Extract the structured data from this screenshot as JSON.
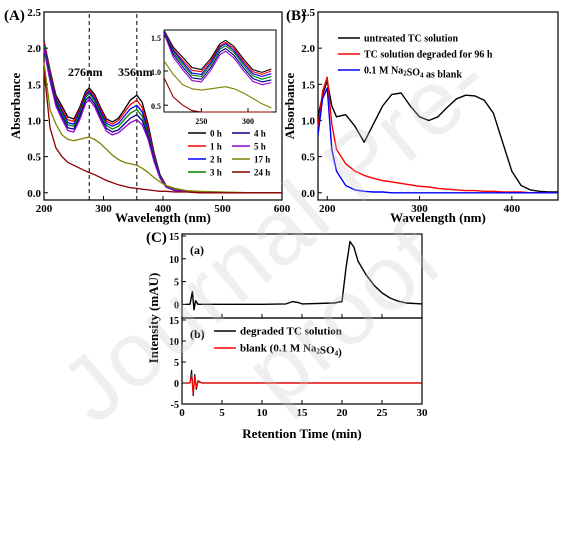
{
  "watermark": "Journal Pre-proof",
  "chart_data": [
    {
      "panel": "(A)",
      "type": "line",
      "xlabel": "Wavelength (nm)",
      "ylabel": "Absorbance",
      "xlim": [
        200,
        600
      ],
      "ylim": [
        -0.1,
        2.5
      ],
      "xticks": [
        "200",
        "300",
        "400",
        "500",
        "600"
      ],
      "yticks": [
        "0.0",
        "0.5",
        "1.0",
        "1.5",
        "2.0",
        "2.5"
      ],
      "annotations": [
        "276nm",
        "356nm"
      ],
      "reference_lines_x": [
        276,
        356
      ],
      "legend_position": "lower-right",
      "x": [
        200,
        210,
        220,
        230,
        240,
        250,
        260,
        270,
        276,
        285,
        295,
        305,
        315,
        325,
        335,
        345,
        356,
        365,
        375,
        385,
        395,
        405,
        420,
        440,
        460,
        500,
        550,
        600
      ],
      "series": [
        {
          "name": "0 h",
          "color": "#000000",
          "values": [
            2.1,
            1.7,
            1.35,
            1.2,
            1.05,
            1.02,
            1.18,
            1.4,
            1.45,
            1.36,
            1.18,
            1.02,
            0.98,
            1.03,
            1.15,
            1.28,
            1.35,
            1.25,
            0.95,
            0.55,
            0.25,
            0.1,
            0.04,
            0.02,
            0.01,
            0.0,
            0.0,
            0.0
          ]
        },
        {
          "name": "1 h",
          "color": "#ff0000",
          "values": [
            2.08,
            1.68,
            1.32,
            1.16,
            1.01,
            0.99,
            1.15,
            1.37,
            1.42,
            1.33,
            1.15,
            0.99,
            0.95,
            1.0,
            1.11,
            1.22,
            1.28,
            1.18,
            0.9,
            0.52,
            0.24,
            0.1,
            0.04,
            0.02,
            0.01,
            0.0,
            0.0,
            0.0
          ]
        },
        {
          "name": "2 h",
          "color": "#0000ff",
          "values": [
            2.05,
            1.65,
            1.3,
            1.13,
            0.97,
            0.95,
            1.12,
            1.35,
            1.4,
            1.3,
            1.12,
            0.96,
            0.92,
            0.96,
            1.06,
            1.16,
            1.21,
            1.12,
            0.86,
            0.5,
            0.23,
            0.09,
            0.04,
            0.02,
            0.01,
            0.0,
            0.0,
            0.0
          ]
        },
        {
          "name": "3 h",
          "color": "#008000",
          "values": [
            2.03,
            1.62,
            1.27,
            1.1,
            0.94,
            0.92,
            1.09,
            1.32,
            1.37,
            1.27,
            1.09,
            0.93,
            0.88,
            0.92,
            1.01,
            1.1,
            1.15,
            1.06,
            0.82,
            0.48,
            0.22,
            0.09,
            0.04,
            0.02,
            0.01,
            0.0,
            0.0,
            0.0
          ]
        },
        {
          "name": "4 h",
          "color": "#000080",
          "values": [
            2.0,
            1.58,
            1.24,
            1.06,
            0.9,
            0.88,
            1.05,
            1.28,
            1.33,
            1.23,
            1.05,
            0.89,
            0.84,
            0.87,
            0.95,
            1.03,
            1.08,
            1.0,
            0.78,
            0.45,
            0.21,
            0.08,
            0.03,
            0.02,
            0.01,
            0.0,
            0.0,
            0.0
          ]
        },
        {
          "name": "5 h",
          "color": "#9400d3",
          "values": [
            1.98,
            1.55,
            1.2,
            1.02,
            0.86,
            0.84,
            1.01,
            1.24,
            1.29,
            1.19,
            1.01,
            0.85,
            0.8,
            0.83,
            0.9,
            0.97,
            1.01,
            0.94,
            0.74,
            0.43,
            0.2,
            0.08,
            0.03,
            0.02,
            0.01,
            0.0,
            0.0,
            0.0
          ]
        },
        {
          "name": "17 h",
          "color": "#808000",
          "values": [
            1.8,
            1.15,
            0.95,
            0.8,
            0.74,
            0.72,
            0.74,
            0.76,
            0.77,
            0.74,
            0.68,
            0.6,
            0.52,
            0.46,
            0.42,
            0.4,
            0.38,
            0.34,
            0.28,
            0.21,
            0.15,
            0.1,
            0.06,
            0.03,
            0.02,
            0.01,
            0.0,
            0.0
          ]
        },
        {
          "name": "24 h",
          "color": "#8b0000",
          "values": [
            1.7,
            0.9,
            0.62,
            0.5,
            0.42,
            0.38,
            0.34,
            0.3,
            0.28,
            0.25,
            0.21,
            0.17,
            0.14,
            0.11,
            0.09,
            0.07,
            0.06,
            0.05,
            0.04,
            0.03,
            0.02,
            0.02,
            0.01,
            0.01,
            0.0,
            0.0,
            0.0,
            0.0
          ]
        }
      ],
      "inset": {
        "xlim": [
          210,
          330
        ],
        "ylim": [
          0.4,
          1.6
        ],
        "xticks": [
          "250",
          "300"
        ],
        "yticks": [
          "0.5",
          "1.0",
          "1.5"
        ]
      }
    },
    {
      "panel": "(B)",
      "type": "line",
      "xlabel": "Wavelength (nm)",
      "ylabel": "Absorbance",
      "xlim": [
        190,
        450
      ],
      "ylim": [
        -0.1,
        2.5
      ],
      "xticks": [
        "200",
        "300",
        "400"
      ],
      "yticks": [
        "0.0",
        "0.5",
        "1.0",
        "1.5",
        "2.0",
        "2.5"
      ],
      "legend_position": "top-right",
      "x": [
        190,
        195,
        200,
        205,
        210,
        220,
        230,
        240,
        250,
        260,
        270,
        280,
        290,
        300,
        310,
        320,
        330,
        340,
        350,
        360,
        370,
        380,
        390,
        400,
        410,
        420,
        430,
        440,
        450
      ],
      "series": [
        {
          "name": "untreated TC solution",
          "color": "#000000",
          "values": [
            1.05,
            1.35,
            1.55,
            1.2,
            1.05,
            1.08,
            0.92,
            0.7,
            0.95,
            1.2,
            1.36,
            1.38,
            1.2,
            1.05,
            1.0,
            1.05,
            1.18,
            1.3,
            1.35,
            1.34,
            1.28,
            1.1,
            0.7,
            0.3,
            0.1,
            0.04,
            0.02,
            0.01,
            0.01
          ]
        },
        {
          "name": "TC solution degraded for 96 h",
          "color": "#ff0000",
          "values": [
            0.9,
            1.4,
            1.6,
            0.95,
            0.6,
            0.4,
            0.3,
            0.24,
            0.2,
            0.17,
            0.15,
            0.13,
            0.11,
            0.09,
            0.08,
            0.06,
            0.05,
            0.04,
            0.03,
            0.03,
            0.02,
            0.02,
            0.01,
            0.01,
            0.01,
            0.0,
            0.0,
            0.0,
            0.0
          ]
        },
        {
          "name": "0.1 M Na2SO4 as blank",
          "color": "#0000ff",
          "values": [
            0.8,
            1.3,
            1.45,
            0.6,
            0.3,
            0.1,
            0.04,
            0.02,
            0.01,
            0.01,
            0.0,
            0.0,
            0.0,
            0.0,
            0.0,
            0.0,
            0.0,
            0.0,
            0.0,
            0.0,
            0.0,
            0.0,
            0.0,
            0.0,
            0.0,
            0.0,
            0.0,
            0.0,
            0.0
          ]
        }
      ]
    },
    {
      "panel": "(C)",
      "type": "line",
      "xlabel": "Retention Time (min)",
      "ylabel": "Intensity (mAU)",
      "xlim": [
        0,
        30
      ],
      "xticks": [
        "0",
        "5",
        "10",
        "15",
        "20",
        "25",
        "30"
      ],
      "subplots": [
        {
          "label": "(a)",
          "ylim": [
            -3,
            15
          ],
          "yticks": [
            "0",
            "5",
            "10",
            "15"
          ],
          "x": [
            0.5,
            1.0,
            1.3,
            1.5,
            1.7,
            2.0,
            5,
            10,
            13,
            13.8,
            14.5,
            15,
            19,
            20,
            20.5,
            21,
            21.5,
            22,
            23,
            24,
            25,
            26,
            27,
            28,
            30
          ],
          "series": [
            {
              "name": "",
              "color": "#000000",
              "values": [
                0,
                0,
                2.8,
                -1.2,
                0.8,
                0,
                0,
                0,
                0.1,
                0.6,
                0.4,
                0.1,
                0.3,
                0.6,
                8.0,
                13.8,
                12.5,
                9.5,
                6.5,
                4.2,
                2.5,
                1.4,
                0.7,
                0.3,
                0.1
              ]
            }
          ]
        },
        {
          "label": "(b)",
          "ylim": [
            -5,
            15
          ],
          "yticks": [
            "-5",
            "0",
            "5",
            "10",
            "15"
          ],
          "legend_position": "top-left",
          "x": [
            0.5,
            1.0,
            1.2,
            1.4,
            1.6,
            1.8,
            2.0,
            2.5,
            5,
            10,
            15,
            20,
            25,
            30
          ],
          "series": [
            {
              "name": "degraded TC solution",
              "color": "#000000",
              "values": [
                0,
                0,
                3.0,
                -3.0,
                2.0,
                -1.5,
                0.5,
                0,
                0,
                0,
                0,
                0,
                0,
                0
              ]
            },
            {
              "name": "blank (0.1 M Na2SO4)",
              "color": "#ff0000",
              "values": [
                0,
                0,
                2.0,
                -2.5,
                1.5,
                -1.0,
                0.3,
                0,
                0,
                0,
                0,
                0,
                0,
                0
              ]
            }
          ]
        }
      ]
    }
  ]
}
